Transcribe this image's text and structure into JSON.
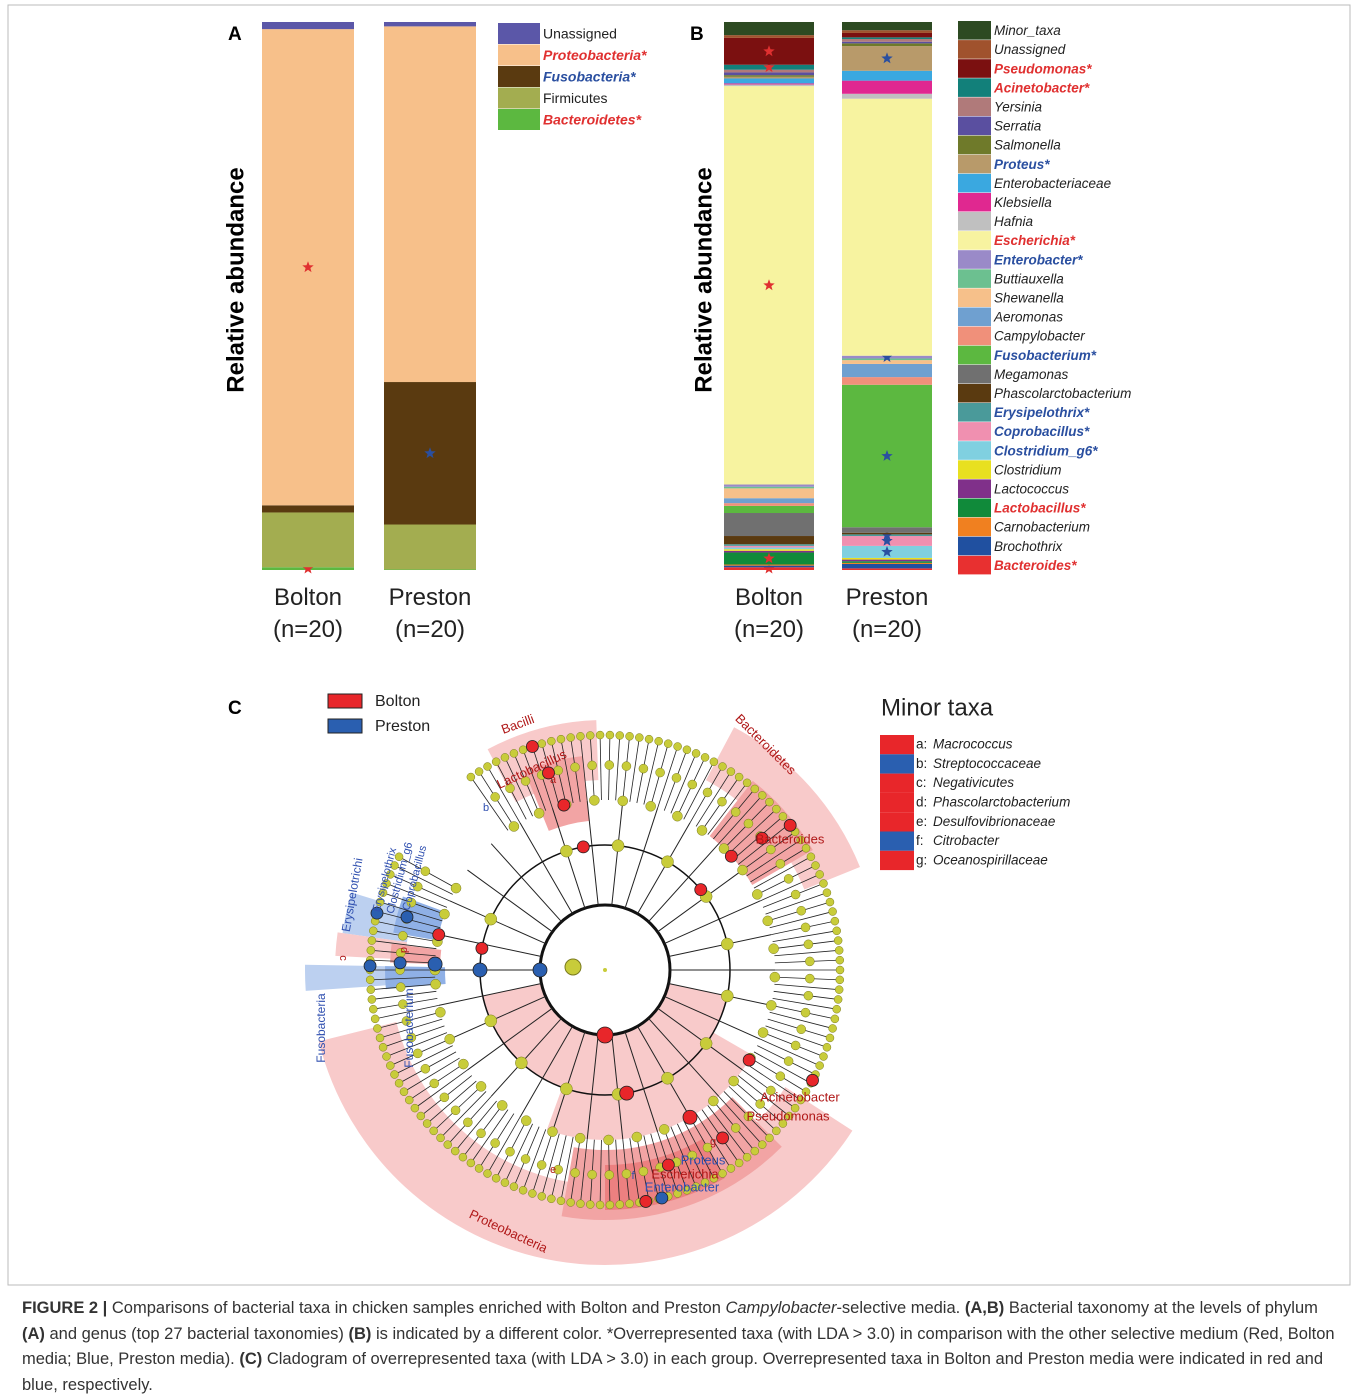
{
  "chart_data": [
    {
      "type": "bar",
      "stacked": true,
      "panel": "A",
      "y_label": "Relative abundance",
      "categories": [
        "Bolton (n=20)",
        "Preston (n=20)"
      ],
      "ylim": [
        0,
        100
      ],
      "legend": "right",
      "legend_italic": false,
      "series": [
        {
          "name": "Unassigned",
          "color": "#5b57a8",
          "values": [
            1.3,
            0.8
          ]
        },
        {
          "name": "Proteobacteria*",
          "color": "#f7c08a",
          "values": [
            86.9,
            64.9
          ],
          "name_color": "#e03030",
          "star": 0
        },
        {
          "name": "Fusobacteria*",
          "color": "#5a3a10",
          "values": [
            1.3,
            26
          ],
          "name_color": "#2a4fa0",
          "star": 1
        },
        {
          "name": "Firmicutes",
          "color": "#a3ad50",
          "values": [
            10,
            8.2
          ]
        },
        {
          "name": "Bacteroidetes*",
          "color": "#5cb840",
          "values": [
            0.5,
            0.1
          ],
          "name_color": "#e03030",
          "star": 0
        }
      ]
    },
    {
      "type": "bar",
      "stacked": true,
      "panel": "B",
      "y_label": "Relative abundance",
      "categories": [
        "Bolton (n=20)",
        "Preston (n=20)"
      ],
      "ylim": [
        0,
        100
      ],
      "legend": "right",
      "legend_italic": true,
      "series": [
        {
          "name": "Minor_taxa",
          "color": "#2d4a22",
          "values": [
            2.4,
            1.5
          ]
        },
        {
          "name": "Unassigned",
          "color": "#a0522d",
          "values": [
            0.5,
            0.5
          ]
        },
        {
          "name": "Pseudomonas*",
          "color": "#7b1010",
          "values": [
            4.9,
            0.8
          ],
          "name_color": "#e03030",
          "star": 0
        },
        {
          "name": "Acinetobacter*",
          "color": "#12807a",
          "values": [
            0.9,
            0.3
          ],
          "name_color": "#e03030",
          "star": 0
        },
        {
          "name": "Yersinia",
          "color": "#b07a7a",
          "values": [
            0.5,
            0.5
          ]
        },
        {
          "name": "Serratia",
          "color": "#5a4fa0",
          "values": [
            0.5,
            0.3
          ]
        },
        {
          "name": "Salmonella",
          "color": "#6f7a2a",
          "values": [
            0.3,
            0.5
          ]
        },
        {
          "name": "Proteus*",
          "color": "#b89a6a",
          "values": [
            0.3,
            4.5
          ],
          "name_color": "#2a4fa0",
          "star": 1
        },
        {
          "name": "Enterobacteriaceae",
          "color": "#3aa8e0",
          "values": [
            0.9,
            1.8
          ]
        },
        {
          "name": "Klebsiella",
          "color": "#e02890",
          "values": [
            0.2,
            2.4
          ]
        },
        {
          "name": "Hafnia",
          "color": "#c0c0c0",
          "values": [
            0.3,
            0.9
          ]
        },
        {
          "name": "Escherichia*",
          "color": "#f7f3a0",
          "values": [
            72.7,
            46.9
          ],
          "name_color": "#e03030",
          "star": 0
        },
        {
          "name": "Enterobacter*",
          "color": "#9a8ac8",
          "values": [
            0.4,
            0.5
          ],
          "name_color": "#2a4fa0",
          "star": 1
        },
        {
          "name": "Buttiauxella",
          "color": "#6cc090",
          "values": [
            0.3,
            0.3
          ]
        },
        {
          "name": "Shewanella",
          "color": "#f6c08a",
          "values": [
            1.8,
            0.7
          ]
        },
        {
          "name": "Aeromonas",
          "color": "#6fa0d0",
          "values": [
            0.9,
            2.4
          ]
        },
        {
          "name": "Campylobacter",
          "color": "#f0907a",
          "values": [
            0.5,
            1.4
          ]
        },
        {
          "name": "Fusobacterium*",
          "color": "#5cb840",
          "values": [
            1.3,
            26
          ],
          "name_color": "#2a4fa0",
          "star": 1
        },
        {
          "name": "Megamonas",
          "color": "#707070",
          "values": [
            4.2,
            1.0
          ]
        },
        {
          "name": "Phascolarctobacterium",
          "color": "#5a3a10",
          "values": [
            1.5,
            0.3
          ]
        },
        {
          "name": "Erysipelothrix*",
          "color": "#4a9a9a",
          "values": [
            0.3,
            0.3
          ],
          "name_color": "#2a4fa0",
          "star": 1
        },
        {
          "name": "Coprobacillus*",
          "color": "#f090b0",
          "values": [
            0.3,
            1.8
          ],
          "name_color": "#2a4fa0",
          "star": 1
        },
        {
          "name": "Clostridium_g6*",
          "color": "#80d0e0",
          "values": [
            0.3,
            2.2
          ],
          "name_color": "#2a4fa0",
          "star": 1
        },
        {
          "name": "Clostridium",
          "color": "#e8e020",
          "values": [
            0.3,
            0.3
          ]
        },
        {
          "name": "Lactococcus",
          "color": "#80308a",
          "values": [
            0.3,
            0.3
          ]
        },
        {
          "name": "Lactobacillus*",
          "color": "#108a3a",
          "values": [
            2.2,
            0.3
          ],
          "name_color": "#e03030",
          "star": 0
        },
        {
          "name": "Carnobacterium",
          "color": "#f08020",
          "values": [
            0.2,
            0.2
          ]
        },
        {
          "name": "Brochothrix",
          "color": "#2050a0",
          "values": [
            0.3,
            0.8
          ]
        },
        {
          "name": "Bacteroides*",
          "color": "#e83030",
          "values": [
            0.5,
            0.3
          ],
          "name_color": "#e03030",
          "star": 0
        }
      ]
    }
  ],
  "cladogram": {
    "panel": "C",
    "legend": [
      {
        "name": "Bolton",
        "color": "#e8262a"
      },
      {
        "name": "Preston",
        "color": "#2a5fb0"
      }
    ],
    "minor_taxa_title": "Minor taxa",
    "minor_taxa": [
      {
        "key": "a:",
        "name": "Macrococcus",
        "color": "#e8262a"
      },
      {
        "key": "b:",
        "name": "Streptococcaceae",
        "color": "#2a5fb0"
      },
      {
        "key": "c:",
        "name": "Negativicutes",
        "color": "#e8262a"
      },
      {
        "key": "d:",
        "name": "Phascolarctobacterium",
        "color": "#e8262a"
      },
      {
        "key": "e:",
        "name": "Desulfovibrionaceae",
        "color": "#e8262a"
      },
      {
        "key": "f:",
        "name": "Citrobacter",
        "color": "#2a5fb0"
      },
      {
        "key": "g:",
        "name": "Oceanospirillaceae",
        "color": "#e8262a"
      }
    ],
    "clade_labels": [
      {
        "text": "Bacilli",
        "color": "#b01818"
      },
      {
        "text": "Lactobacillus",
        "color": "#b01818"
      },
      {
        "text": "a",
        "color": "#b01818"
      },
      {
        "text": "b",
        "color": "#3050b0"
      },
      {
        "text": "Bacteroidetes",
        "color": "#b01818"
      },
      {
        "text": "Bacteroides",
        "color": "#b01818"
      },
      {
        "text": "Erysipelotrichi",
        "color": "#3050b0"
      },
      {
        "text": "Erysipelothrix",
        "color": "#3050b0"
      },
      {
        "text": "Clostridium_g6",
        "color": "#3050b0"
      },
      {
        "text": "Coprobacillus",
        "color": "#3050b0"
      },
      {
        "text": "c",
        "color": "#b01818"
      },
      {
        "text": "d",
        "color": "#b01818"
      },
      {
        "text": "Fusobacteria",
        "color": "#3050b0"
      },
      {
        "text": "Fusobacterium",
        "color": "#3050b0"
      },
      {
        "text": "Acinetobacter",
        "color": "#b01818"
      },
      {
        "text": "Pseudomonas",
        "color": "#b01818"
      },
      {
        "text": "g",
        "color": "#b01818"
      },
      {
        "text": "Proteus",
        "color": "#3050b0"
      },
      {
        "text": "Escherichia",
        "color": "#b01818"
      },
      {
        "text": "Enterobacter",
        "color": "#3050b0"
      },
      {
        "text": "f",
        "color": "#3050b0"
      },
      {
        "text": "e",
        "color": "#b01818"
      },
      {
        "text": "Proteobacteria",
        "color": "#b01818"
      }
    ]
  },
  "caption": {
    "parts": [
      {
        "text": "FIGURE 2 | ",
        "style": "bold"
      },
      {
        "text": "Comparisons of bacterial taxa in chicken samples enriched with Bolton and Preston ",
        "style": "plain"
      },
      {
        "text": "Campylobacter",
        "style": "italic"
      },
      {
        "text": "-selective media. ",
        "style": "plain"
      },
      {
        "text": "(A,B)",
        "style": "bold"
      },
      {
        "text": " Bacterial taxonomy at the levels of phylum ",
        "style": "plain"
      },
      {
        "text": "(A)",
        "style": "bold"
      },
      {
        "text": " and genus (top 27 bacterial taxonomies) ",
        "style": "plain"
      },
      {
        "text": "(B)",
        "style": "bold"
      },
      {
        "text": " is indicated by a different color. *Overrepresented taxa (with LDA > 3.0) in comparison with the other selective medium (Red, Bolton media; Blue, Preston media). ",
        "style": "plain"
      },
      {
        "text": "(C)",
        "style": "bold"
      },
      {
        "text": " Cladogram of overrepresented taxa (with LDA > 3.0) in each group. Overrepresented taxa in Bolton and Preston media were indicated in red and blue, respectively.",
        "style": "plain"
      }
    ]
  }
}
